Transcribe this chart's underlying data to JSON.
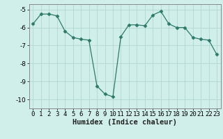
{
  "x": [
    0,
    1,
    2,
    3,
    4,
    5,
    6,
    7,
    8,
    9,
    10,
    11,
    12,
    13,
    14,
    15,
    16,
    17,
    18,
    19,
    20,
    21,
    22,
    23
  ],
  "y": [
    -5.8,
    -5.25,
    -5.25,
    -5.35,
    -6.2,
    -6.55,
    -6.65,
    -6.7,
    -9.25,
    -9.7,
    -9.85,
    -6.5,
    -5.85,
    -5.85,
    -5.9,
    -5.3,
    -5.1,
    -5.8,
    -6.0,
    -6.0,
    -6.55,
    -6.65,
    -6.7,
    -7.5
  ],
  "line_color": "#2d7a6a",
  "marker": "D",
  "markersize": 2.5,
  "bg_color": "#d0eeea",
  "grid_color": "#b0d8d0",
  "xlabel": "Humidex (Indice chaleur)",
  "ylim": [
    -10.5,
    -4.7
  ],
  "xlim": [
    -0.5,
    23.5
  ],
  "yticks": [
    -10,
    -9,
    -8,
    -7,
    -6,
    -5
  ],
  "xticks": [
    0,
    1,
    2,
    3,
    4,
    5,
    6,
    7,
    8,
    9,
    10,
    11,
    12,
    13,
    14,
    15,
    16,
    17,
    18,
    19,
    20,
    21,
    22,
    23
  ],
  "xlabel_fontsize": 7.5,
  "tick_fontsize": 6.5
}
